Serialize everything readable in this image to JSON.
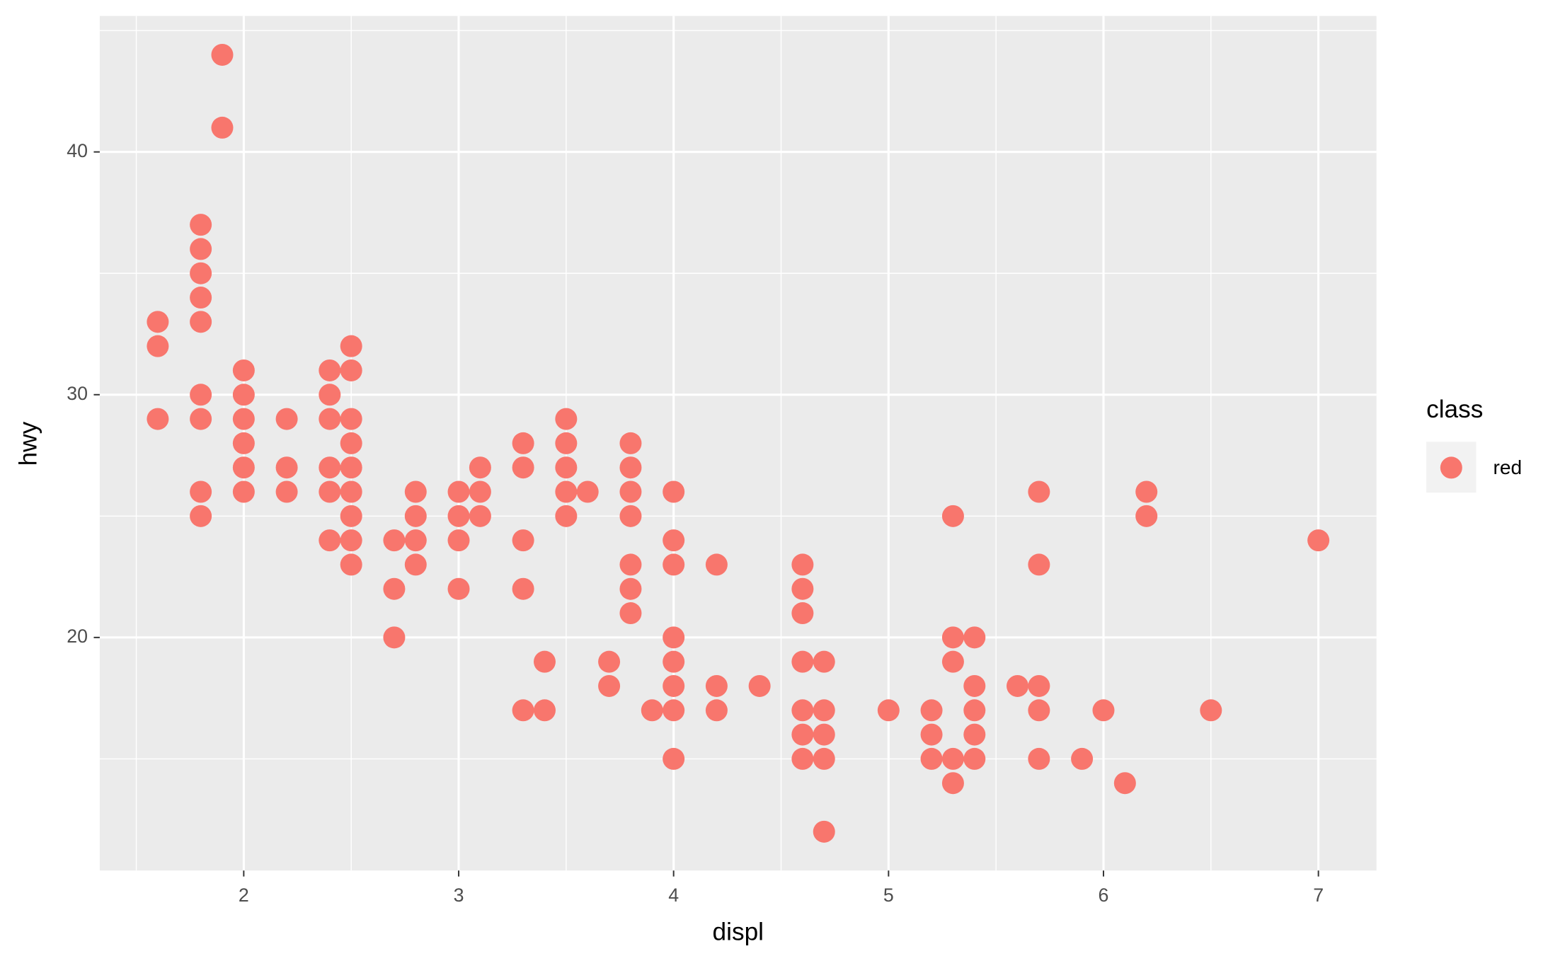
{
  "chart_data": {
    "type": "scatter",
    "x_label": "displ",
    "y_label": "hwy",
    "legend_title": "class",
    "legend_position": "right",
    "xlim": [
      1.33,
      7.27
    ],
    "ylim": [
      10.4,
      45.6
    ],
    "xticks": [
      2,
      3,
      4,
      5,
      6,
      7
    ],
    "yticks": [
      20,
      30,
      40
    ],
    "x_minor_grid": [
      1.5,
      2.5,
      3.5,
      4.5,
      5.5,
      6.5
    ],
    "y_minor_grid": [
      15,
      25,
      35,
      45
    ],
    "grid": true,
    "background": "#ebebeb",
    "series": [
      {
        "name": "red",
        "color": "#F8766D",
        "x": [
          1.6,
          1.6,
          1.6,
          1.8,
          1.8,
          1.8,
          1.8,
          1.8,
          1.8,
          1.8,
          1.8,
          1.8,
          1.9,
          1.9,
          2,
          2,
          2,
          2,
          2,
          2,
          2.2,
          2.2,
          2.2,
          2.4,
          2.4,
          2.4,
          2.4,
          2.4,
          2.4,
          2.5,
          2.5,
          2.5,
          2.5,
          2.5,
          2.5,
          2.5,
          2.5,
          2.5,
          2.7,
          2.7,
          2.7,
          2.8,
          2.8,
          2.8,
          2.8,
          3,
          3,
          3,
          3,
          3.1,
          3.1,
          3.1,
          3.3,
          3.3,
          3.3,
          3.3,
          3.3,
          3.4,
          3.4,
          3.5,
          3.5,
          3.5,
          3.5,
          3.5,
          3.6,
          3.7,
          3.7,
          3.8,
          3.8,
          3.8,
          3.8,
          3.8,
          3.8,
          3.8,
          3.9,
          4,
          4,
          4,
          4,
          4,
          4,
          4,
          4,
          4.2,
          4.2,
          4.2,
          4.4,
          4.6,
          4.6,
          4.6,
          4.6,
          4.6,
          4.6,
          4.6,
          4.7,
          4.7,
          4.7,
          4.7,
          4.7,
          5,
          5.2,
          5.2,
          5.2,
          5.3,
          5.3,
          5.3,
          5.3,
          5.3,
          5.4,
          5.4,
          5.4,
          5.4,
          5.4,
          5.6,
          5.7,
          5.7,
          5.7,
          5.7,
          5.7,
          5.9,
          6,
          6.1,
          6.2,
          6.2,
          6.5,
          7
        ],
        "values": [
          33,
          32,
          29,
          37,
          36,
          35,
          34,
          33,
          30,
          29,
          26,
          25,
          44,
          41,
          31,
          30,
          29,
          28,
          27,
          26,
          29,
          27,
          26,
          31,
          30,
          29,
          27,
          26,
          24,
          32,
          31,
          29,
          28,
          27,
          26,
          25,
          24,
          23,
          24,
          22,
          20,
          26,
          25,
          24,
          23,
          26,
          25,
          24,
          22,
          27,
          26,
          25,
          28,
          27,
          24,
          22,
          17,
          19,
          17,
          29,
          28,
          27,
          26,
          25,
          26,
          19,
          18,
          28,
          27,
          26,
          25,
          23,
          22,
          21,
          17,
          26,
          24,
          23,
          20,
          19,
          18,
          17,
          15,
          23,
          18,
          17,
          18,
          23,
          22,
          21,
          19,
          17,
          16,
          15,
          19,
          17,
          16,
          15,
          12,
          17,
          17,
          16,
          15,
          25,
          20,
          19,
          15,
          14,
          20,
          18,
          17,
          16,
          15,
          18,
          26,
          23,
          18,
          17,
          15,
          15,
          17,
          14,
          26,
          25,
          17,
          24
        ]
      }
    ]
  }
}
